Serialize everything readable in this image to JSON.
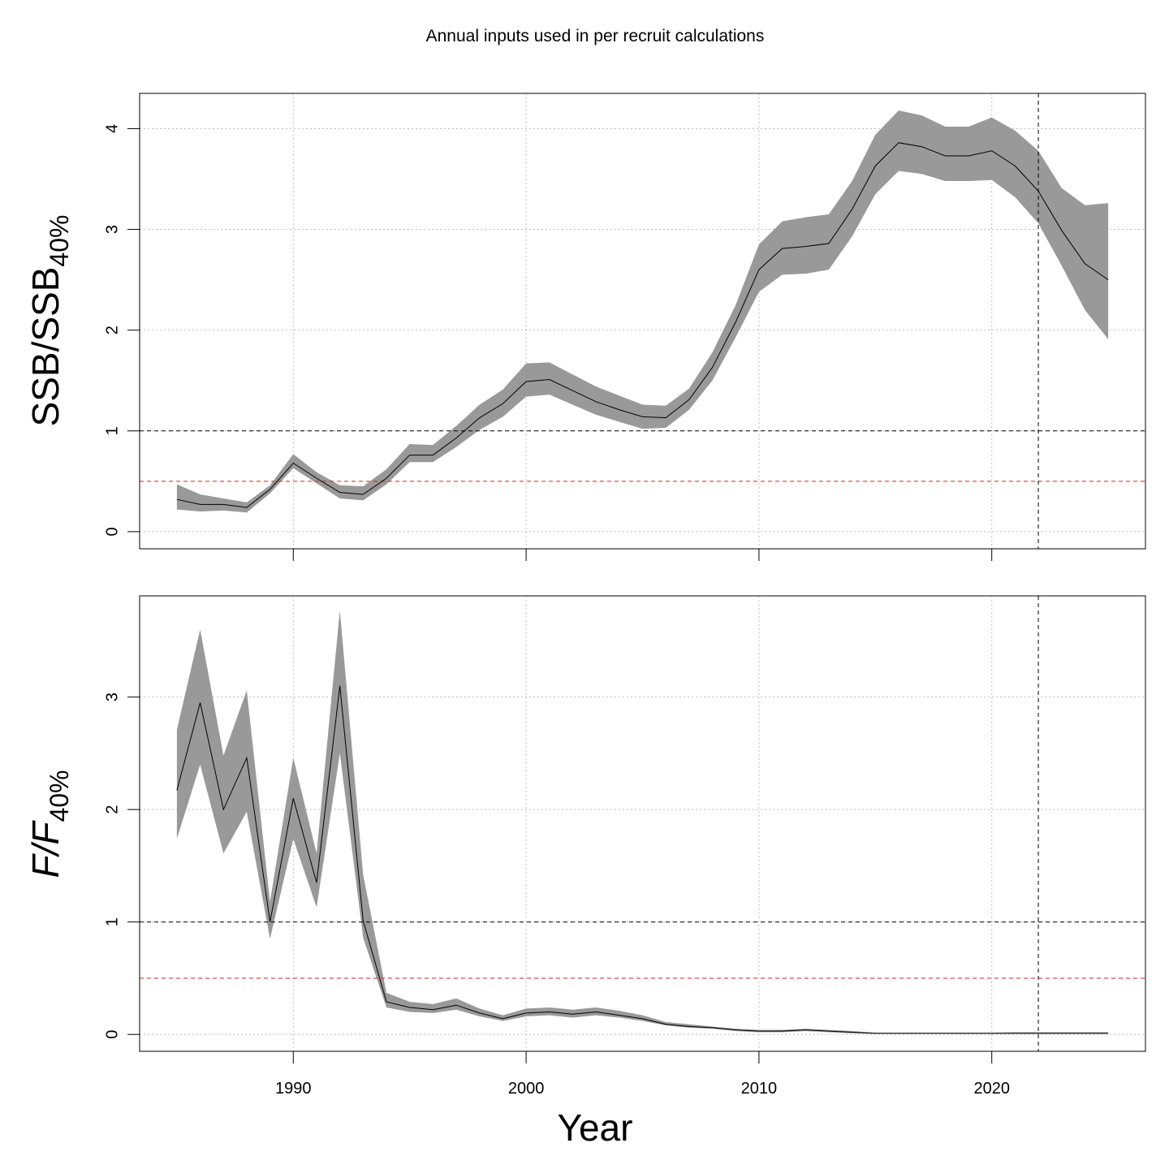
{
  "title": "Annual inputs used in per recruit calculations",
  "xlabel": "Year",
  "x_tick_labels": [
    "1990",
    "2000",
    "2010",
    "2020"
  ],
  "colors": {
    "band": "#999999",
    "line": "#000000",
    "reference_black": "#000000",
    "reference_red": "#cd2626",
    "grid": "#bebebe",
    "frame": "#000000"
  },
  "chart_data": [
    {
      "type": "area",
      "panel": "top",
      "ylabel": {
        "main": "SSB/SSB",
        "sub": "40%"
      },
      "xlim": [
        1983.4,
        2026.6
      ],
      "ylim": [
        -0.17,
        4.35
      ],
      "x_ticks": [
        1990,
        2000,
        2010,
        2020
      ],
      "y_ticks": [
        0,
        1,
        2,
        3,
        4
      ],
      "y_tick_labels": [
        "0",
        "1",
        "2",
        "3",
        "4"
      ],
      "grid": true,
      "reference_lines": {
        "horizontal": [
          {
            "y": 1,
            "color": "black"
          },
          {
            "y": 0.5,
            "color": "red"
          }
        ],
        "vertical": [
          2022
        ]
      },
      "x": [
        1985,
        1986,
        1987,
        1988,
        1989,
        1990,
        1991,
        1992,
        1993,
        1994,
        1995,
        1996,
        1997,
        1998,
        1999,
        2000,
        2001,
        2002,
        2003,
        2004,
        2005,
        2006,
        2007,
        2008,
        2009,
        2010,
        2011,
        2012,
        2013,
        2014,
        2015,
        2016,
        2017,
        2018,
        2019,
        2020,
        2021,
        2022,
        2023,
        2024,
        2025
      ],
      "series": [
        {
          "values": [
            0.32,
            0.27,
            0.27,
            0.24,
            0.42,
            0.68,
            0.53,
            0.39,
            0.37,
            0.53,
            0.76,
            0.76,
            0.93,
            1.13,
            1.27,
            1.49,
            1.51,
            1.4,
            1.29,
            1.21,
            1.14,
            1.13,
            1.31,
            1.63,
            2.08,
            2.6,
            2.81,
            2.83,
            2.86,
            3.2,
            3.63,
            3.86,
            3.82,
            3.73,
            3.73,
            3.78,
            3.63,
            3.38,
            2.99,
            2.66,
            2.5
          ],
          "lower": [
            0.22,
            0.2,
            0.21,
            0.19,
            0.38,
            0.63,
            0.48,
            0.33,
            0.31,
            0.47,
            0.69,
            0.69,
            0.84,
            1.01,
            1.14,
            1.34,
            1.36,
            1.26,
            1.16,
            1.09,
            1.02,
            1.03,
            1.21,
            1.5,
            1.93,
            2.38,
            2.55,
            2.56,
            2.6,
            2.93,
            3.35,
            3.58,
            3.55,
            3.48,
            3.48,
            3.49,
            3.32,
            3.06,
            2.64,
            2.2,
            1.91
          ],
          "upper": [
            0.47,
            0.37,
            0.33,
            0.29,
            0.46,
            0.77,
            0.59,
            0.46,
            0.45,
            0.62,
            0.87,
            0.86,
            1.05,
            1.26,
            1.41,
            1.67,
            1.68,
            1.56,
            1.44,
            1.35,
            1.26,
            1.25,
            1.42,
            1.78,
            2.25,
            2.85,
            3.08,
            3.12,
            3.15,
            3.48,
            3.94,
            4.18,
            4.13,
            4.02,
            4.02,
            4.11,
            3.98,
            3.78,
            3.41,
            3.24,
            3.26
          ]
        }
      ]
    },
    {
      "type": "area",
      "panel": "bottom",
      "ylabel": {
        "main": "F/F",
        "sub": "40%"
      },
      "xlim": [
        1983.4,
        2026.6
      ],
      "ylim": [
        -0.15,
        3.9
      ],
      "x_ticks": [
        1990,
        2000,
        2010,
        2020
      ],
      "y_ticks": [
        0,
        1,
        2,
        3
      ],
      "y_tick_labels": [
        "0",
        "1",
        "2",
        "3"
      ],
      "grid": true,
      "reference_lines": {
        "horizontal": [
          {
            "y": 1,
            "color": "black"
          },
          {
            "y": 0.5,
            "color": "red"
          }
        ],
        "vertical": [
          2022
        ]
      },
      "x": [
        1985,
        1986,
        1987,
        1988,
        1989,
        1990,
        1991,
        1992,
        1993,
        1994,
        1995,
        1996,
        1997,
        1998,
        1999,
        2000,
        2001,
        2002,
        2003,
        2004,
        2005,
        2006,
        2007,
        2008,
        2009,
        2010,
        2011,
        2012,
        2013,
        2014,
        2015,
        2016,
        2017,
        2018,
        2019,
        2020,
        2021,
        2022,
        2023,
        2024,
        2025
      ],
      "series": [
        {
          "values": [
            2.17,
            2.95,
            2.0,
            2.46,
            1.0,
            2.1,
            1.35,
            3.1,
            1.01,
            0.29,
            0.24,
            0.22,
            0.26,
            0.19,
            0.14,
            0.19,
            0.2,
            0.18,
            0.2,
            0.17,
            0.14,
            0.09,
            0.07,
            0.06,
            0.04,
            0.03,
            0.03,
            0.04,
            0.03,
            0.02,
            0.01,
            0.01,
            0.01,
            0.01,
            0.01,
            0.01,
            0.01,
            0.01,
            0.01,
            0.01,
            0.01
          ],
          "lower": [
            1.74,
            2.4,
            1.61,
            1.98,
            0.85,
            1.74,
            1.13,
            2.5,
            0.86,
            0.24,
            0.2,
            0.19,
            0.22,
            0.16,
            0.12,
            0.16,
            0.17,
            0.15,
            0.17,
            0.15,
            0.12,
            0.08,
            0.06,
            0.05,
            0.03,
            0.02,
            0.02,
            0.03,
            0.02,
            0.01,
            0.005,
            0.005,
            0.005,
            0.005,
            0.005,
            0.005,
            0.005,
            0.005,
            0.005,
            0.005,
            0.005
          ],
          "upper": [
            2.71,
            3.6,
            2.48,
            3.06,
            1.18,
            2.46,
            1.61,
            3.77,
            1.42,
            0.37,
            0.29,
            0.27,
            0.32,
            0.23,
            0.17,
            0.23,
            0.24,
            0.22,
            0.24,
            0.21,
            0.17,
            0.11,
            0.09,
            0.07,
            0.05,
            0.04,
            0.04,
            0.05,
            0.04,
            0.03,
            0.015,
            0.015,
            0.015,
            0.015,
            0.015,
            0.015,
            0.02,
            0.02,
            0.02,
            0.02,
            0.02
          ]
        }
      ]
    }
  ]
}
